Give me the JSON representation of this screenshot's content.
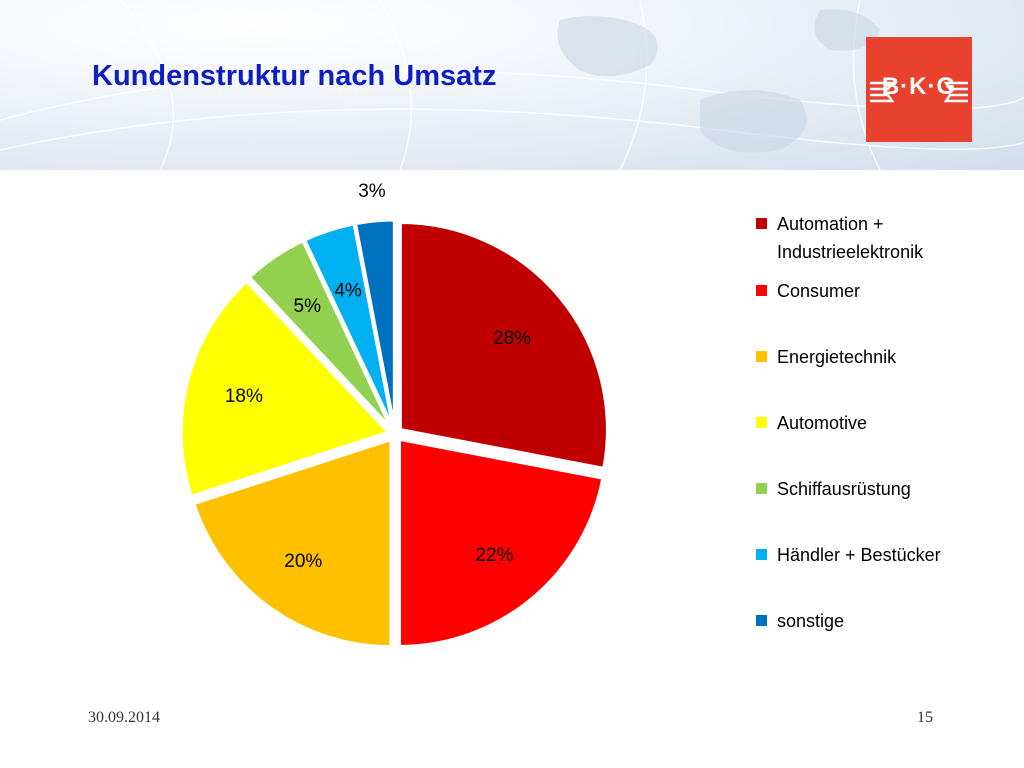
{
  "slide": {
    "title": "Kundenstruktur nach Umsatz",
    "date": "30.09.2014",
    "page_number": "15",
    "logo_text": "B·K·G"
  },
  "chart_data": {
    "type": "pie",
    "title": "",
    "legend_position": "right",
    "categories": [
      "Automation + Industrieelektronik",
      "Consumer",
      "Energietechnik",
      "Automotive",
      "Schiffausrüstung",
      "Händler + Bestücker",
      "sonstige"
    ],
    "values": [
      28,
      22,
      20,
      18,
      5,
      4,
      3
    ],
    "labels": [
      "28%",
      "22%",
      "20%",
      "18%",
      "5%",
      "4%",
      "3%"
    ],
    "colors": [
      "#c00000",
      "#ff0000",
      "#ffc000",
      "#ffff00",
      "#92d050",
      "#00b0f0",
      "#0070c0"
    ],
    "legend_lines": [
      [
        "Automation +",
        "Industrieelektronik"
      ],
      [
        "Consumer"
      ],
      [
        "Energietechnik"
      ],
      [
        "Automotive"
      ],
      [
        "Schiffausrüstung"
      ],
      [
        "Händler + Bestücker"
      ],
      [
        "sonstige"
      ]
    ]
  }
}
